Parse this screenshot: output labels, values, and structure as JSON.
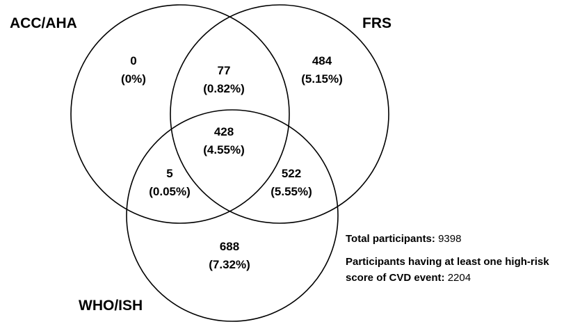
{
  "sets": {
    "acc_aha": "ACC/AHA",
    "frs": "FRS",
    "who_ish": "WHO/ISH"
  },
  "regions": {
    "acc_only": {
      "count": "0",
      "pct": "(0%)"
    },
    "acc_frs": {
      "count": "77",
      "pct": "(0.82%)"
    },
    "frs_only": {
      "count": "484",
      "pct": "(5.15%)"
    },
    "all_three": {
      "count": "428",
      "pct": "(4.55%)"
    },
    "acc_who": {
      "count": "5",
      "pct": "(0.05%)"
    },
    "frs_who": {
      "count": "522",
      "pct": "(5.55%)"
    },
    "who_only": {
      "count": "688",
      "pct": "(7.32%)"
    }
  },
  "summary": {
    "total_label": "Total participants:",
    "total_value": "9398",
    "high_risk_label": "Participants having at least one high-risk score of CVD event:",
    "high_risk_value": "2204"
  },
  "colors": {
    "stroke": "#000000",
    "background": "#ffffff"
  }
}
